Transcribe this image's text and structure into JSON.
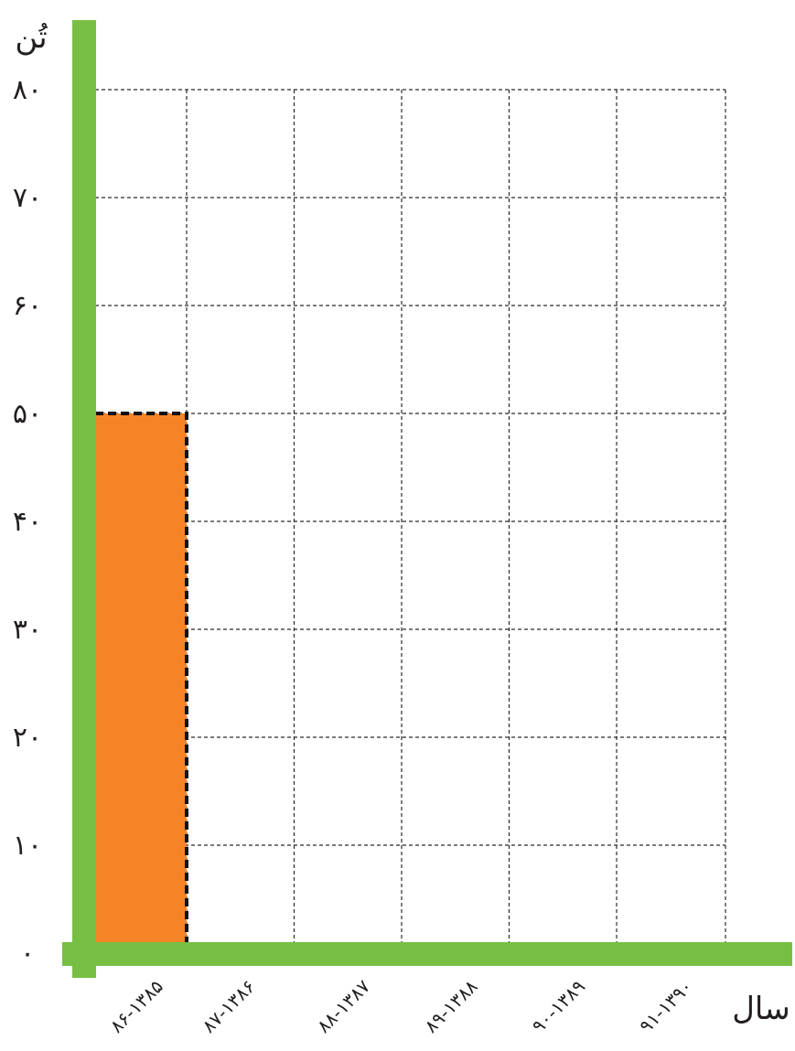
{
  "colors": {
    "axis": "#76bf43",
    "bar": "#f58426",
    "grid": "#2b2b2b",
    "text": "#231f20"
  },
  "chart_data": {
    "type": "bar",
    "ylabel": "تُن",
    "xlabel": "سال",
    "ylim": [
      0,
      80
    ],
    "yticks": [
      0,
      10,
      20,
      30,
      40,
      50,
      60,
      70,
      80
    ],
    "ytick_labels": [
      "۰",
      "۱۰",
      "۲۰",
      "۳۰",
      "۴۰",
      "۵۰",
      "۶۰",
      "۷۰",
      "۸۰"
    ],
    "categories": [
      "۸۶-۱۳۸۵",
      "۸۷-۱۳۸۶",
      "۸۸-۱۳۸۷",
      "۸۹-۱۳۸۸",
      "۹۰-۱۳۸۹",
      "۹۱-۱۳۹۰"
    ],
    "series": [
      {
        "values": [
          50,
          null,
          null,
          null,
          null,
          null
        ]
      }
    ],
    "grid": true
  }
}
